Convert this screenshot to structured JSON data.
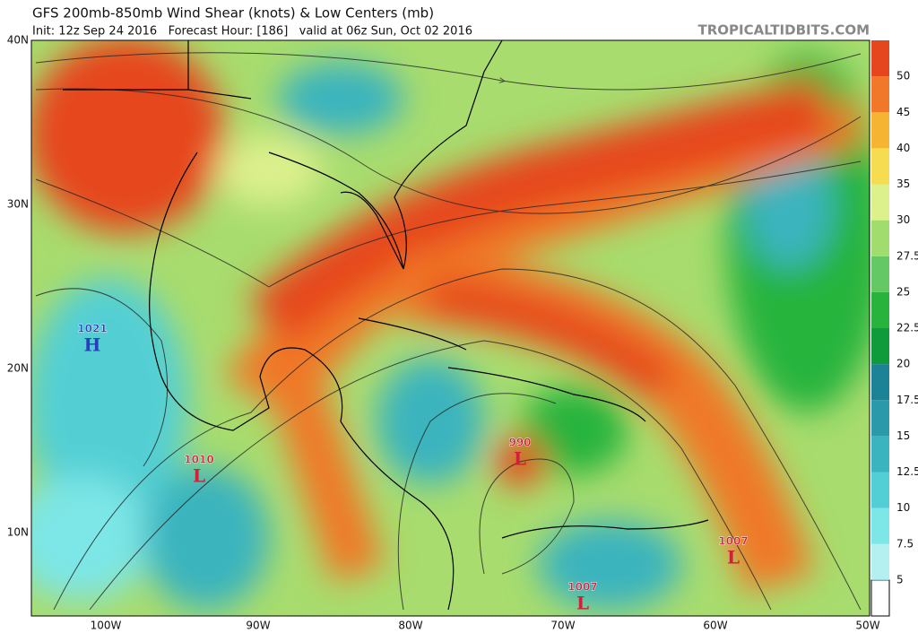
{
  "header": {
    "title": "GFS 200mb-850mb Wind Shear (knots) & Low Centers (mb)",
    "subtitle": "Init: 12z Sep 24 2016   Forecast Hour: [186]   valid at 06z Sun, Oct 02 2016",
    "watermark": "TROPICALTIDBITS.COM"
  },
  "axes": {
    "lat_labels": [
      "40N",
      "30N",
      "20N",
      "10N"
    ],
    "lon_labels": [
      "100W",
      "90W",
      "80W",
      "70W",
      "60W",
      "50W"
    ]
  },
  "colorbar": {
    "ticks": [
      "5",
      "7.5",
      "10",
      "12.5",
      "15",
      "17.5",
      "20",
      "22.5",
      "25",
      "27.5",
      "30",
      "35",
      "40",
      "45",
      "50"
    ],
    "colors": [
      "#ffffff",
      "#b4f0f0",
      "#7de6e6",
      "#52cfd4",
      "#3ab4be",
      "#2a9aaa",
      "#1c8296",
      "#0f9a3c",
      "#28b43c",
      "#64c864",
      "#a0dc6e",
      "#dcf08c",
      "#f5dc50",
      "#f5b432",
      "#f07828",
      "#e6461e"
    ]
  },
  "pressure_centers": [
    {
      "value": "1021",
      "letter": "H",
      "color": "#2a3fc0"
    },
    {
      "value": "1010",
      "letter": "L",
      "color": "#d0203a"
    },
    {
      "value": "990",
      "letter": "L",
      "color": "#d0203a"
    },
    {
      "value": "1007",
      "letter": "L",
      "color": "#d0203a"
    },
    {
      "value": "1007",
      "letter": "L",
      "color": "#d0203a"
    }
  ]
}
